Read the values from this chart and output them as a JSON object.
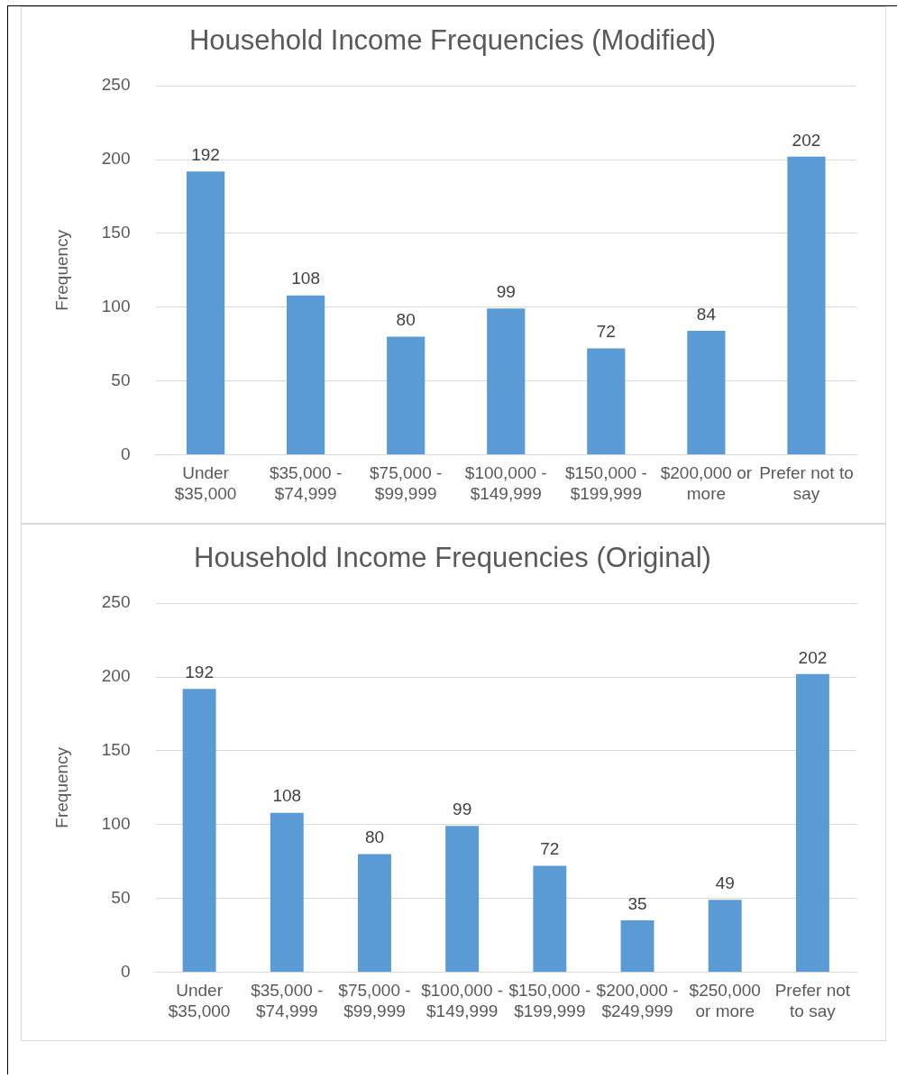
{
  "chart_data": [
    {
      "type": "bar",
      "title": "Household Income Frequencies (Modified)",
      "ylabel": "Frequency",
      "categories": [
        "Under $35,000",
        "$35,000 - $74,999",
        "$75,000 - $99,999",
        "$100,000 - $149,999",
        "$150,000 - $199,999",
        "$200,000 or more",
        "Prefer not to say"
      ],
      "values": [
        192,
        108,
        80,
        99,
        72,
        84,
        202
      ],
      "color": "#5b9bd5",
      "ylim": [
        0,
        250
      ],
      "yticks": [
        0,
        50,
        100,
        150,
        200,
        250
      ],
      "grid": "y",
      "data_labels": true,
      "legend": false
    },
    {
      "type": "bar",
      "title": "Household Income Frequencies (Original)",
      "ylabel": "Frequency",
      "categories": [
        "Under $35,000",
        "$35,000 - $74,999",
        "$75,000 - $99,999",
        "$100,000 - $149,999",
        "$150,000 - $199,999",
        "$200,000 - $249,999",
        "$250,000 or more",
        "Prefer not to say"
      ],
      "values": [
        192,
        108,
        80,
        99,
        72,
        35,
        49,
        202
      ],
      "color": "#5b9bd5",
      "ylim": [
        0,
        250
      ],
      "yticks": [
        0,
        50,
        100,
        150,
        200,
        250
      ],
      "grid": "y",
      "data_labels": true,
      "legend": false
    }
  ]
}
